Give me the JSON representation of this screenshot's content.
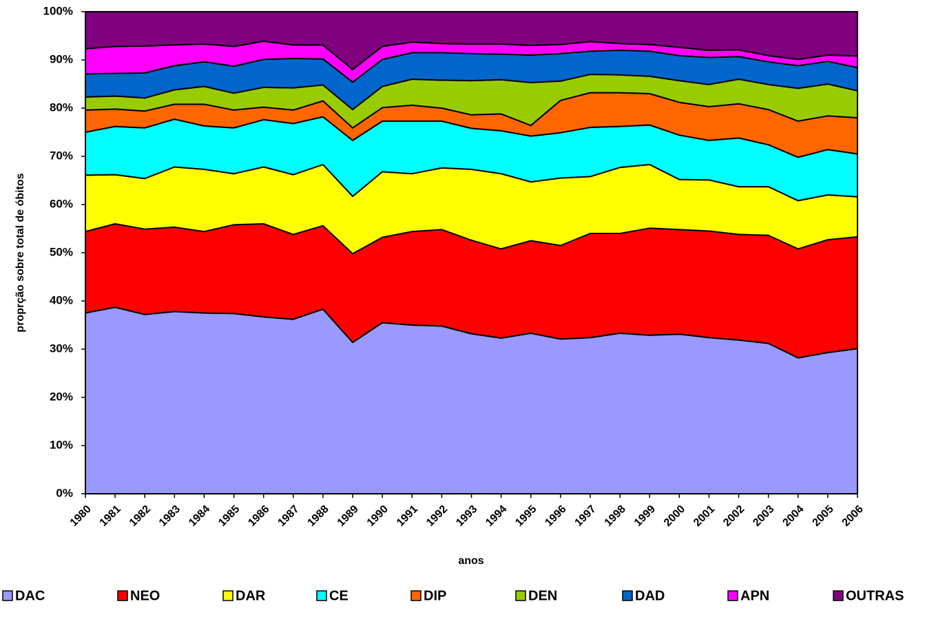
{
  "chart_data": {
    "type": "stacked_area",
    "x_label": "anos",
    "y_label": "proprção sobre total de óbitos",
    "categories": [
      "1980",
      "1981",
      "1982",
      "1983",
      "1984",
      "1985",
      "1986",
      "1987",
      "1988",
      "1989",
      "1990",
      "1991",
      "1992",
      "1993",
      "1994",
      "1995",
      "1996",
      "1997",
      "1998",
      "1999",
      "2000",
      "2001",
      "2002",
      "2003",
      "2004",
      "2005",
      "2006"
    ],
    "ylim": [
      0,
      100
    ],
    "yticks": [
      {
        "value": 0,
        "label": "0%"
      },
      {
        "value": 10,
        "label": "10%"
      },
      {
        "value": 20,
        "label": "20%"
      },
      {
        "value": 30,
        "label": "30%"
      },
      {
        "value": 40,
        "label": "40%"
      },
      {
        "value": 50,
        "label": "50%"
      },
      {
        "value": 60,
        "label": "60%"
      },
      {
        "value": 70,
        "label": "70%"
      },
      {
        "value": 80,
        "label": "80%"
      },
      {
        "value": 90,
        "label": "90%"
      },
      {
        "value": 100,
        "label": "100%"
      }
    ],
    "legend": "bottom",
    "series": [
      {
        "name": "DAC",
        "color": "#9999ff",
        "values": [
          37.5,
          38.7,
          37.2,
          37.8,
          37.5,
          37.4,
          36.7,
          36.2,
          38.3,
          31.4,
          35.5,
          35.0,
          34.8,
          33.2,
          32.3,
          33.3,
          32.1,
          32.4,
          33.3,
          32.9,
          33.1,
          32.4,
          31.9,
          31.2,
          28.2,
          29.3,
          30.1
        ]
      },
      {
        "name": "NEO",
        "color": "#ff0000",
        "values": [
          16.9,
          17.3,
          17.7,
          17.5,
          16.9,
          18.4,
          19.3,
          17.6,
          17.3,
          18.4,
          17.7,
          19.4,
          20.0,
          19.4,
          18.5,
          19.2,
          19.4,
          21.6,
          20.7,
          22.2,
          21.7,
          22.1,
          21.9,
          22.4,
          22.6,
          23.4,
          23.2
        ]
      },
      {
        "name": "DAR",
        "color": "#ffff00",
        "values": [
          11.7,
          10.2,
          10.5,
          12.5,
          12.9,
          10.6,
          11.8,
          12.4,
          12.7,
          11.9,
          13.6,
          12.0,
          12.8,
          14.7,
          15.6,
          12.2,
          14.0,
          11.8,
          13.7,
          13.2,
          10.4,
          10.6,
          9.9,
          10.1,
          10.0,
          9.3,
          8.3
        ]
      },
      {
        "name": "CE",
        "color": "#00ffff",
        "values": [
          8.9,
          10.0,
          10.5,
          9.9,
          9.0,
          9.5,
          9.8,
          10.6,
          9.9,
          11.6,
          10.5,
          10.9,
          9.7,
          8.5,
          8.9,
          9.5,
          9.4,
          10.2,
          8.5,
          8.2,
          9.2,
          8.2,
          10.1,
          8.7,
          9.0,
          9.4,
          8.9
        ]
      },
      {
        "name": "DIP",
        "color": "#ff6600",
        "values": [
          4.6,
          3.6,
          3.5,
          3.1,
          4.5,
          3.7,
          2.6,
          2.8,
          3.3,
          2.6,
          2.8,
          3.3,
          2.7,
          2.8,
          3.5,
          2.2,
          6.7,
          7.2,
          7.0,
          6.5,
          6.8,
          7.0,
          7.1,
          7.3,
          7.5,
          7.0,
          7.5
        ]
      },
      {
        "name": "DEN",
        "color": "#99cc00",
        "values": [
          2.7,
          2.7,
          2.7,
          3.0,
          3.7,
          3.5,
          4.1,
          4.6,
          3.3,
          3.8,
          4.4,
          5.4,
          5.8,
          7.1,
          7.1,
          8.9,
          4.0,
          3.8,
          3.7,
          3.6,
          4.5,
          4.6,
          5.1,
          5.2,
          6.8,
          6.6,
          5.6
        ]
      },
      {
        "name": "DAD",
        "color": "#0066cc",
        "values": [
          4.8,
          4.7,
          5.2,
          5.0,
          5.1,
          5.6,
          5.8,
          6.1,
          5.4,
          5.7,
          5.6,
          5.5,
          5.7,
          5.6,
          5.3,
          5.7,
          5.7,
          4.8,
          5.1,
          5.2,
          5.2,
          5.6,
          4.7,
          4.7,
          4.7,
          4.7,
          4.8
        ]
      },
      {
        "name": "APN",
        "color": "#ff00ff",
        "values": [
          5.2,
          5.6,
          5.6,
          4.3,
          3.7,
          4.1,
          3.8,
          2.8,
          2.9,
          2.6,
          2.7,
          2.2,
          1.9,
          2.0,
          2.1,
          2.0,
          1.9,
          2.0,
          1.4,
          1.4,
          1.7,
          1.5,
          1.4,
          1.3,
          1.3,
          1.3,
          2.4
        ]
      },
      {
        "name": "OUTRAS",
        "color": "#800080",
        "values": [
          7.7,
          7.2,
          7.1,
          6.9,
          6.7,
          7.2,
          6.1,
          6.9,
          6.9,
          12.0,
          7.2,
          6.3,
          6.6,
          6.7,
          6.7,
          7.0,
          6.8,
          6.2,
          6.6,
          6.8,
          7.4,
          8.0,
          7.9,
          9.1,
          9.9,
          9.0,
          9.2
        ]
      }
    ]
  }
}
